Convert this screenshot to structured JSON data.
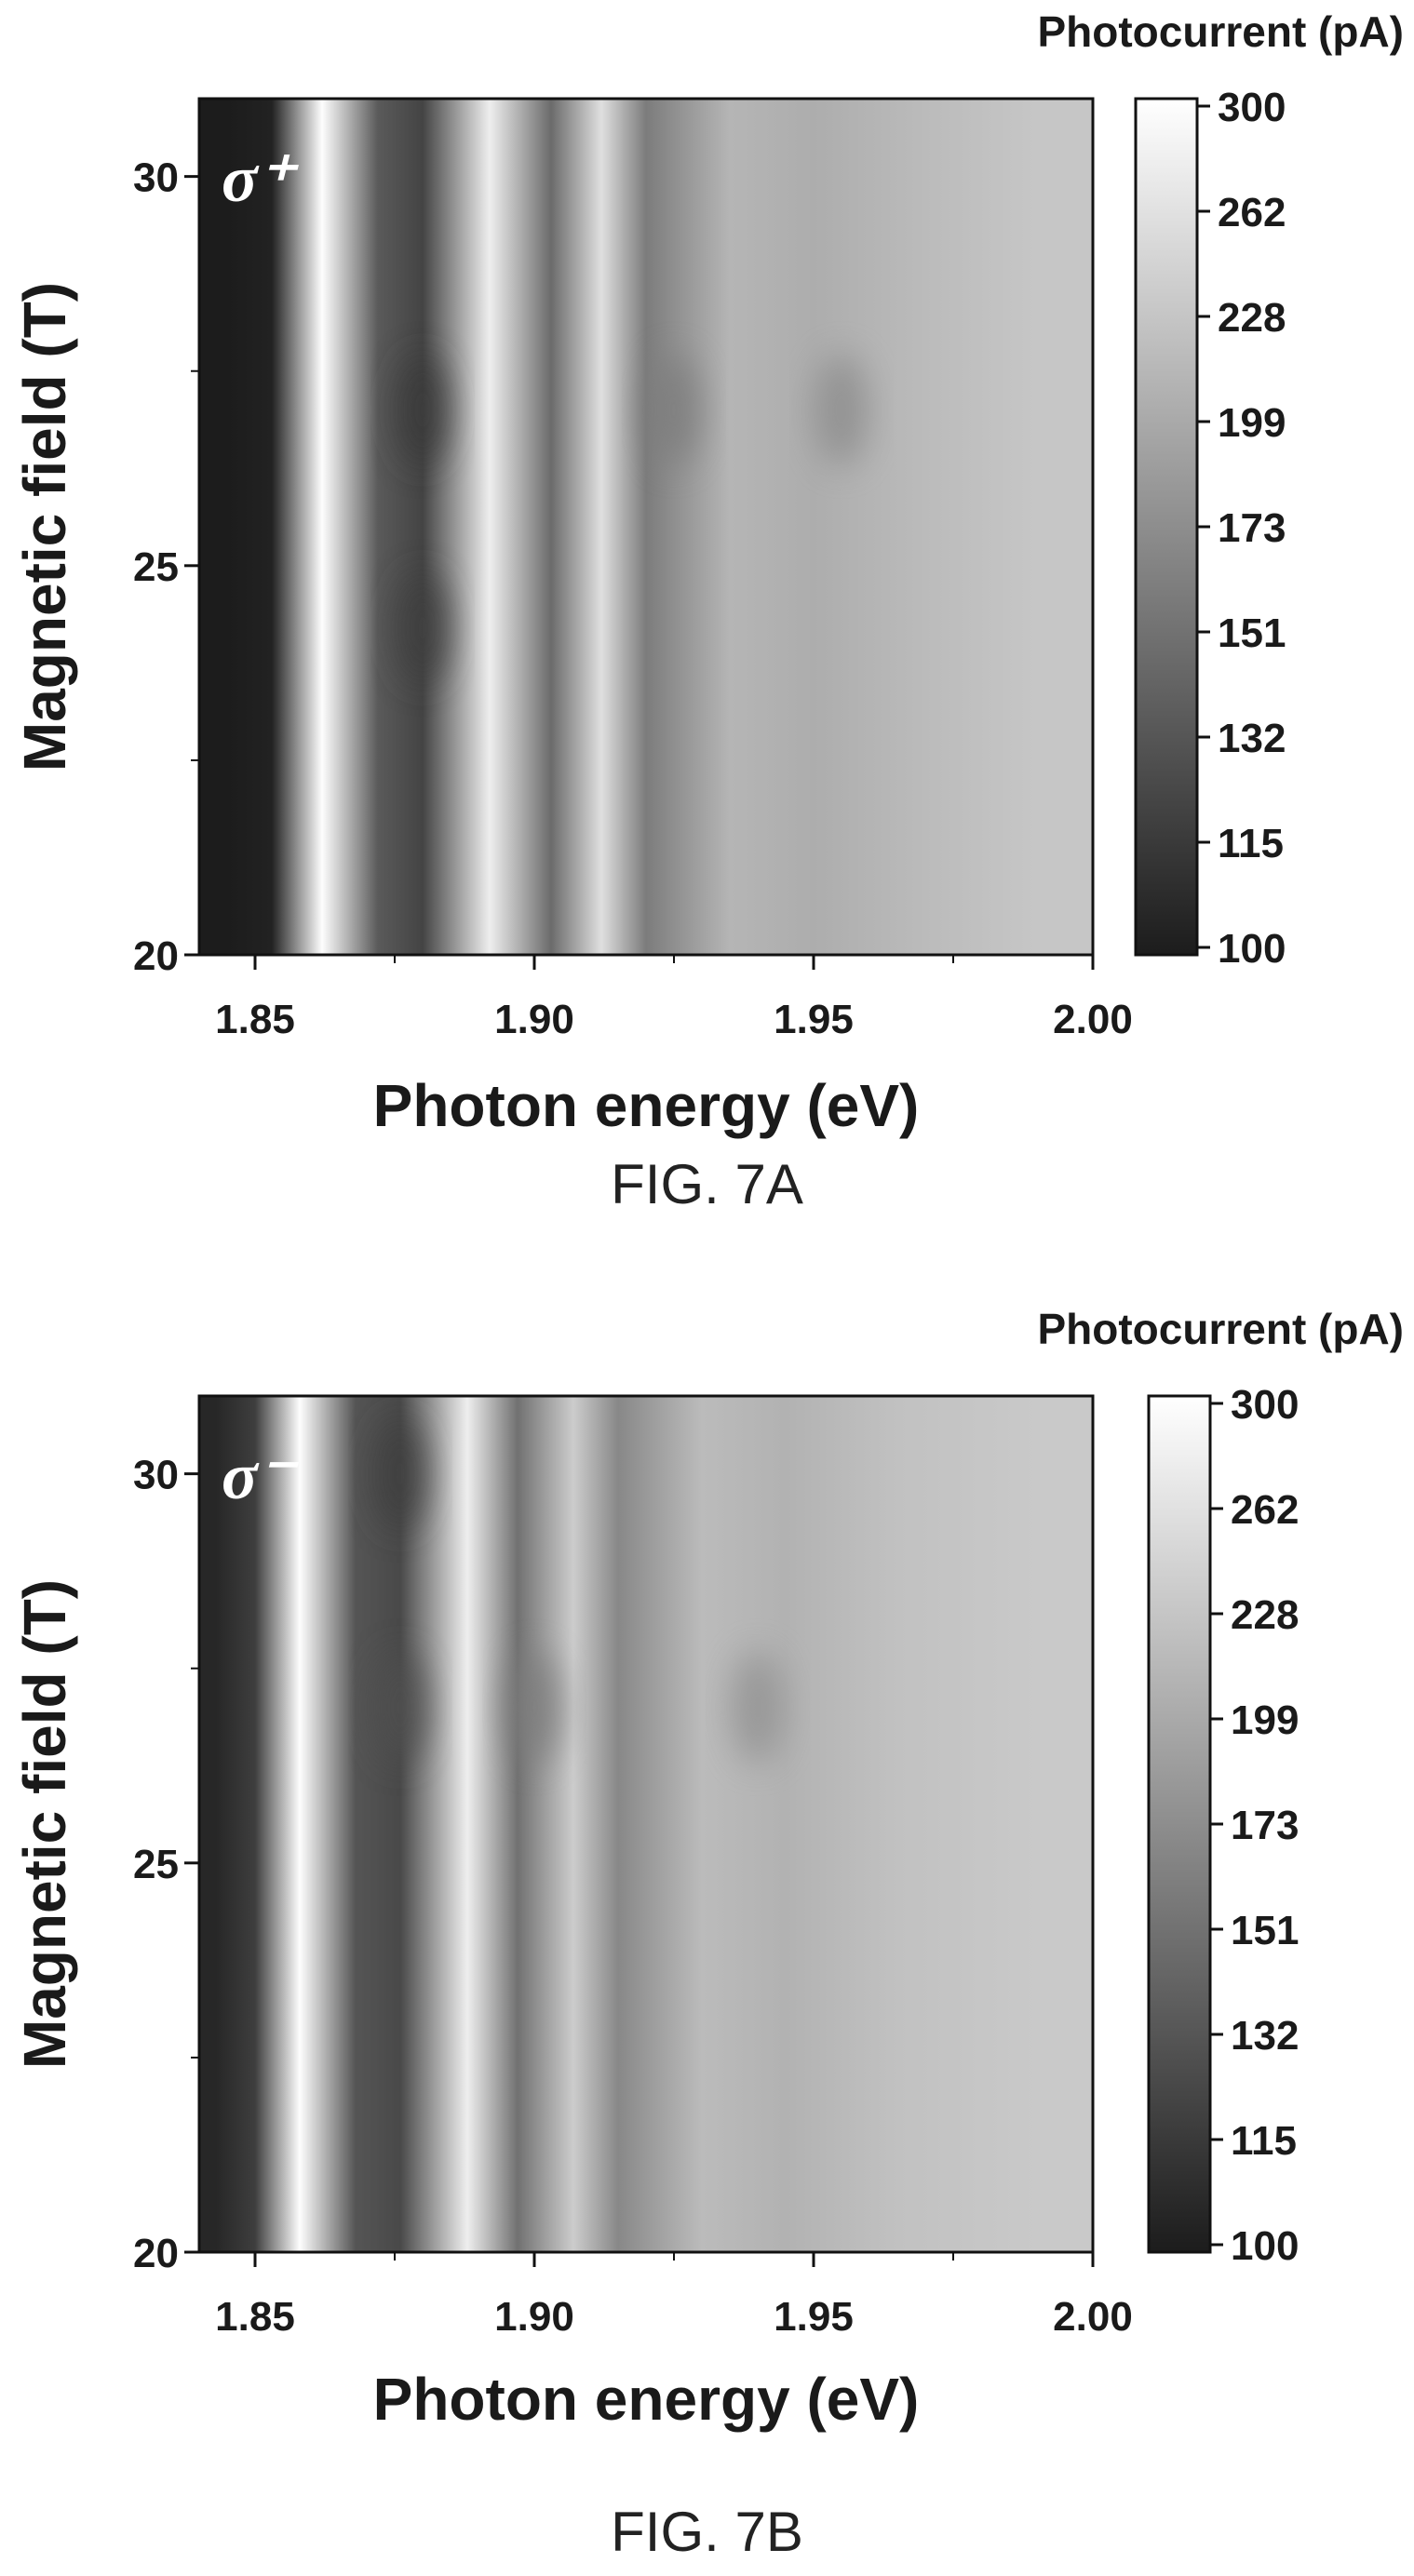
{
  "chart_data": [
    {
      "type": "heatmap",
      "panel": "A",
      "caption": "FIG. 7A",
      "annotation": "σ⁺",
      "xlabel": "Photon energy (eV)",
      "ylabel": "Magnetic field (T)",
      "xlim": [
        1.84,
        2.0
      ],
      "ylim": [
        20,
        31
      ],
      "xticks": [
        "1.85",
        "1.90",
        "1.95",
        "2.00"
      ],
      "yticks": [
        "20",
        "25",
        "30"
      ],
      "colorbar": {
        "title": "Photocurrent (pA)",
        "ticks": [
          "300",
          "262",
          "228",
          "199",
          "173",
          "151",
          "132",
          "115",
          "100"
        ],
        "range": [
          100,
          300
        ]
      },
      "bands": [
        {
          "x": 1.845,
          "value": 100
        },
        {
          "x": 1.853,
          "value": 105
        },
        {
          "x": 1.862,
          "value": 298
        },
        {
          "x": 1.872,
          "value": 155
        },
        {
          "x": 1.88,
          "value": 135
        },
        {
          "x": 1.892,
          "value": 285
        },
        {
          "x": 1.903,
          "value": 170
        },
        {
          "x": 1.912,
          "value": 272
        },
        {
          "x": 1.92,
          "value": 185
        },
        {
          "x": 1.935,
          "value": 235
        },
        {
          "x": 1.95,
          "value": 228
        },
        {
          "x": 1.97,
          "value": 240
        },
        {
          "x": 1.99,
          "value": 250
        }
      ],
      "dark_spots": [
        {
          "x": 1.88,
          "y": 27.0,
          "value": 125
        },
        {
          "x": 1.88,
          "y": 24.2,
          "value": 130
        },
        {
          "x": 1.925,
          "y": 27.0,
          "value": 185
        },
        {
          "x": 1.955,
          "y": 27.0,
          "value": 195
        }
      ]
    },
    {
      "type": "heatmap",
      "panel": "B",
      "caption": "FIG. 7B",
      "annotation": "σ⁻",
      "xlabel": "Photon energy (eV)",
      "ylabel": "Magnetic field (T)",
      "xlim": [
        1.84,
        2.0
      ],
      "ylim": [
        20,
        31
      ],
      "xticks": [
        "1.85",
        "1.90",
        "1.95",
        "2.00"
      ],
      "yticks": [
        "20",
        "25",
        "30"
      ],
      "colorbar": {
        "title": "Photocurrent (pA)",
        "ticks": [
          "300",
          "262",
          "228",
          "199",
          "173",
          "151",
          "132",
          "115",
          "100"
        ],
        "range": [
          100,
          300
        ]
      },
      "bands": [
        {
          "x": 1.843,
          "value": 110
        },
        {
          "x": 1.85,
          "value": 130
        },
        {
          "x": 1.858,
          "value": 298
        },
        {
          "x": 1.868,
          "value": 150
        },
        {
          "x": 1.876,
          "value": 140
        },
        {
          "x": 1.888,
          "value": 285
        },
        {
          "x": 1.897,
          "value": 175
        },
        {
          "x": 1.907,
          "value": 255
        },
        {
          "x": 1.915,
          "value": 195
        },
        {
          "x": 1.93,
          "value": 240
        },
        {
          "x": 1.945,
          "value": 232
        },
        {
          "x": 1.965,
          "value": 245
        },
        {
          "x": 1.99,
          "value": 252
        }
      ],
      "dark_spots": [
        {
          "x": 1.876,
          "y": 30.0,
          "value": 130
        },
        {
          "x": 1.876,
          "y": 27.0,
          "value": 145
        },
        {
          "x": 1.9,
          "y": 27.0,
          "value": 185
        },
        {
          "x": 1.94,
          "y": 27.0,
          "value": 200
        }
      ]
    }
  ]
}
